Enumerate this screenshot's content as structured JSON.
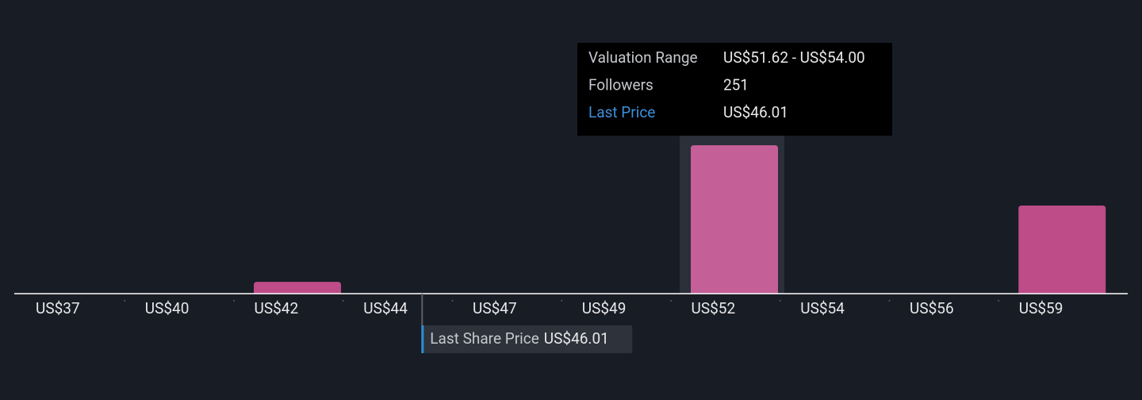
{
  "chart_data": {
    "type": "bar",
    "categories": [
      "US$37",
      "US$40",
      "US$42",
      "US$44",
      "US$47",
      "US$49",
      "US$52",
      "US$54",
      "US$56",
      "US$59"
    ],
    "values": [
      0,
      0,
      20,
      0,
      0,
      0,
      251,
      0,
      0,
      149
    ],
    "color": "#bd4c88",
    "highlight_color": "#c45f98",
    "xlim": [
      37.34,
      61.14
    ],
    "last_price": {
      "label": "Last Share Price",
      "value": 46.01,
      "value_label": "US$46.01"
    },
    "tooltip": {
      "rows": [
        [
          "Valuation Range",
          "US$51.62 - US$54.00"
        ],
        [
          "Followers",
          "251"
        ],
        [
          "Last Price",
          "US$46.01"
        ]
      ]
    }
  }
}
